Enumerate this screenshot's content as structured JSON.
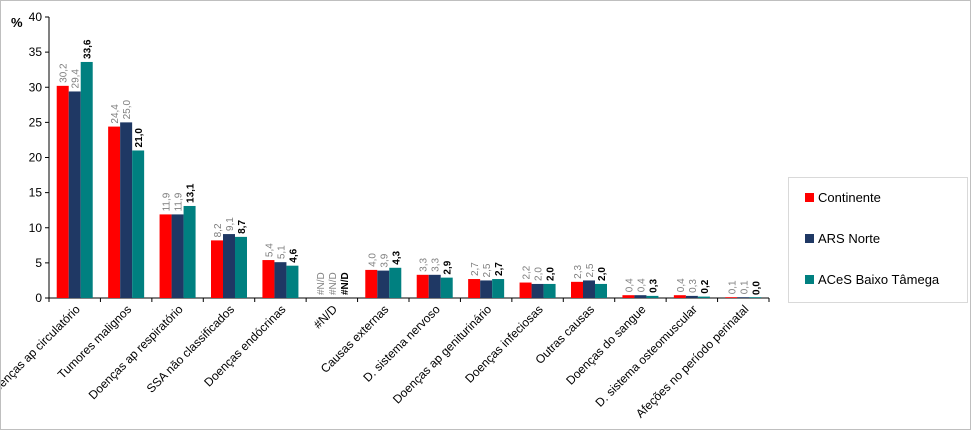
{
  "chart_data": {
    "type": "bar",
    "y_unit": "%",
    "ylim": [
      0,
      40
    ],
    "yticks": [
      0,
      5,
      10,
      15,
      20,
      25,
      30,
      35,
      40
    ],
    "grid": false,
    "legend_position": "right",
    "categories": [
      "Doenças ap circulatório",
      "Tumores malignos",
      "Doenças ap respiratório",
      "SSA não classificados",
      "Doenças endócrinas",
      "#N/D",
      "Causas externas",
      "D. sistema nervoso",
      "Doenças ap geniturinário",
      "Doenças infeciosas",
      "Outras causas",
      "Doenças do sangue",
      "D. sistema osteomuscular",
      "Afeções no período perinatal"
    ],
    "series": [
      {
        "name": "Continente",
        "color": "#ff0000",
        "values": [
          30.2,
          24.4,
          11.9,
          8.2,
          5.4,
          null,
          4.0,
          3.3,
          2.7,
          2.2,
          2.3,
          0.4,
          0.4,
          0.1
        ],
        "labels": [
          "30,2",
          "24,4",
          "11,9",
          "8,2",
          "5,4",
          "#N/D",
          "4,0",
          "3,3",
          "2,7",
          "2,2",
          "2,3",
          "0,4",
          "0,4",
          "0,1"
        ],
        "label_bold": false
      },
      {
        "name": "ARS Norte",
        "color": "#1f3864",
        "values": [
          29.4,
          25.0,
          11.9,
          9.1,
          5.1,
          null,
          3.9,
          3.3,
          2.5,
          2.0,
          2.5,
          0.4,
          0.3,
          0.1
        ],
        "labels": [
          "29,4",
          "25,0",
          "11,9",
          "9,1",
          "5,1",
          "#N/D",
          "3,9",
          "3,3",
          "2,5",
          "2,0",
          "2,5",
          "0,4",
          "0,3",
          "0,1"
        ],
        "label_bold": false
      },
      {
        "name": "ACeS Baixo Tâmega",
        "color": "#008080",
        "values": [
          33.6,
          21.0,
          13.1,
          8.7,
          4.6,
          null,
          4.3,
          2.9,
          2.7,
          2.0,
          2.0,
          0.3,
          0.2,
          0.0
        ],
        "labels": [
          "33,6",
          "21,0",
          "13,1",
          "8,7",
          "4,6",
          "#N/D",
          "4,3",
          "2,9",
          "2,7",
          "2,0",
          "2,0",
          "0,3",
          "0,2",
          "0,0"
        ],
        "label_bold": true
      }
    ]
  }
}
